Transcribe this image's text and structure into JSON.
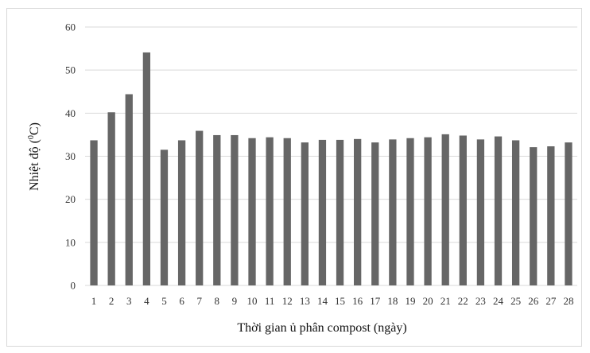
{
  "chart_data": {
    "type": "bar",
    "categories": [
      "1",
      "2",
      "3",
      "4",
      "5",
      "6",
      "7",
      "8",
      "9",
      "10",
      "11",
      "12",
      "13",
      "14",
      "15",
      "16",
      "17",
      "18",
      "19",
      "20",
      "21",
      "22",
      "23",
      "24",
      "25",
      "26",
      "27",
      "28"
    ],
    "values": [
      33.7,
      40.2,
      44.4,
      54.1,
      31.5,
      33.7,
      35.9,
      34.9,
      34.9,
      34.2,
      34.4,
      34.2,
      33.2,
      33.8,
      33.8,
      34.0,
      33.2,
      33.9,
      34.2,
      34.4,
      35.1,
      34.8,
      33.9,
      34.6,
      33.7,
      32.1,
      32.3,
      33.2
    ],
    "xlabel": "Thời gian ủ phân compost (ngày)",
    "ylabel_prefix": "Nhiệt độ (",
    "ylabel_superscript": "0",
    "ylabel_suffix": "C)",
    "ylim": [
      0,
      60
    ],
    "yticks": [
      0,
      10,
      20,
      30,
      40,
      50,
      60
    ],
    "grid": true,
    "bar_color": "#666666",
    "grid_color": "#d9d9d9"
  }
}
